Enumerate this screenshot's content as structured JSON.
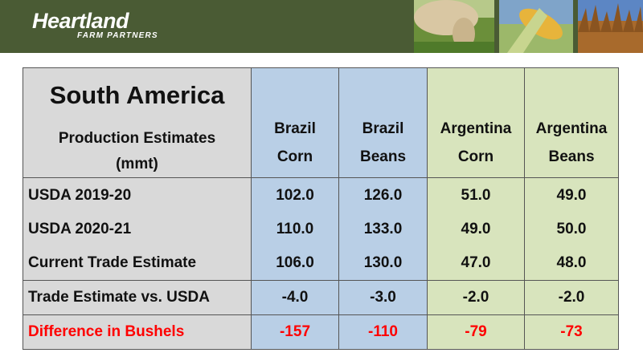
{
  "header": {
    "brand_name": "Heartland",
    "brand_sub": "FARM PARTNERS",
    "photos": [
      "cow-grazing-photo",
      "corn-ear-photo",
      "soybean-field-photo"
    ]
  },
  "table": {
    "title": "South America",
    "subtitle_line1": "Production Estimates",
    "subtitle_line2": "(mmt)",
    "columns": [
      {
        "line1": "Brazil",
        "line2": "Corn"
      },
      {
        "line1": "Brazil",
        "line2": "Beans"
      },
      {
        "line1": "Argentina",
        "line2": "Corn"
      },
      {
        "line1": "Argentina",
        "line2": "Beans"
      }
    ],
    "rows": [
      {
        "label": "USDA 2019-20",
        "values": [
          "102.0",
          "126.0",
          "51.0",
          "49.0"
        ]
      },
      {
        "label": "USDA 2020-21",
        "values": [
          "110.0",
          "133.0",
          "49.0",
          "50.0"
        ]
      },
      {
        "label": "Current Trade Estimate",
        "values": [
          "106.0",
          "130.0",
          "47.0",
          "48.0"
        ]
      }
    ],
    "vs_row": {
      "label": "Trade Estimate vs. USDA",
      "values": [
        "-4.0",
        "-3.0",
        "-2.0",
        "-2.0"
      ]
    },
    "diff_row": {
      "label": "Difference in Bushels",
      "values": [
        "-157",
        "-110",
        "-79",
        "-73"
      ]
    }
  },
  "colors": {
    "header_green": "#4a5b34",
    "label_gray": "#d9d9d9",
    "brazil_blue": "#b9cfe6",
    "argentina_green": "#d8e4bd",
    "alert_red": "#ff0000"
  }
}
